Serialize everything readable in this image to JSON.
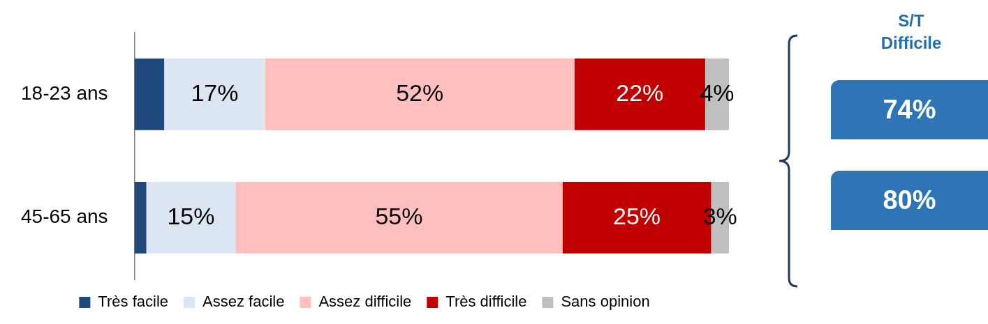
{
  "chart_data": {
    "type": "bar",
    "orientation": "horizontal",
    "stacked": true,
    "categories": [
      "18-23 ans",
      "45-65 ans"
    ],
    "xlim": [
      0,
      100
    ],
    "tick_labels": "y",
    "legend": "bottom",
    "series": [
      {
        "name": "Très facile",
        "color": "#1f497d",
        "values": [
          5,
          2
        ],
        "value_labels": [
          null,
          null
        ]
      },
      {
        "name": "Assez facile",
        "color": "#dce6f2",
        "values": [
          17,
          15
        ],
        "value_labels": [
          "17%",
          "15%"
        ]
      },
      {
        "name": "Assez difficile",
        "color": "#ffbfbf",
        "values": [
          52,
          55
        ],
        "value_labels": [
          "52%",
          "55%"
        ]
      },
      {
        "name": "Très difficile",
        "color": "#c00000",
        "values": [
          22,
          25
        ],
        "value_labels": [
          "22%",
          "25%"
        ]
      },
      {
        "name": "Sans opinion",
        "color": "#bfbfbf",
        "values": [
          4,
          3
        ],
        "value_labels": [
          "4%",
          "3%"
        ]
      }
    ],
    "annotations": [
      "S/T Difficile",
      "74%",
      "80%"
    ]
  }
}
